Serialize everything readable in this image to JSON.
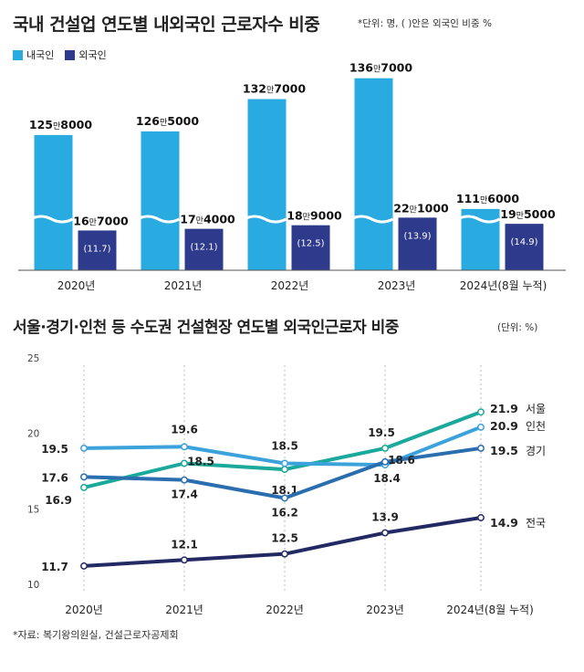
{
  "chart_data": [
    {
      "type": "bar",
      "title": "국내 건설업 연도별 내외국인 근로자수 비중",
      "unit_note": "*단위: 명, ( )안은 외국인 비중 %",
      "categories": [
        "2020년",
        "2021년",
        "2022년",
        "2023년",
        "2024년(8월 누적)"
      ],
      "axis_break": true,
      "series": [
        {
          "name": "내국인",
          "color": "#29aae1",
          "values": [
            1258000,
            1265000,
            1327000,
            1367000,
            1116000
          ],
          "labels": [
            {
              "num": "125",
              "man": "만",
              "rest": "8000"
            },
            {
              "num": "126",
              "man": "만",
              "rest": "5000"
            },
            {
              "num": "132",
              "man": "만",
              "rest": "7000"
            },
            {
              "num": "136",
              "man": "만",
              "rest": "7000"
            },
            {
              "num": "111",
              "man": "만",
              "rest": "6000"
            }
          ]
        },
        {
          "name": "외국인",
          "color": "#2e3a8c",
          "values": [
            167000,
            174000,
            189000,
            221000,
            195000
          ],
          "labels": [
            {
              "num": "16",
              "man": "만",
              "rest": "7000"
            },
            {
              "num": "17",
              "man": "만",
              "rest": "4000"
            },
            {
              "num": "18",
              "man": "만",
              "rest": "9000"
            },
            {
              "num": "22",
              "man": "만",
              "rest": "1000"
            },
            {
              "num": "19",
              "man": "만",
              "rest": "5000"
            }
          ],
          "share_labels": [
            "(11.7)",
            "(12.1)",
            "(12.5)",
            "(13.9)",
            "(14.9)"
          ]
        }
      ]
    },
    {
      "type": "line",
      "title": "서울·경기·인천 등 수도권 건설현장 연도별 외국인근로자 비중",
      "unit_note": "(단위: %)",
      "categories": [
        "2020년",
        "2021년",
        "2022년",
        "2023년",
        "2024년(8월 누적)"
      ],
      "ylim": [
        10,
        25
      ],
      "yticks": [
        "10",
        "15",
        "20",
        "25"
      ],
      "grid": "vertical dashed",
      "series": [
        {
          "name": "서울",
          "color": "#1aa99a",
          "values": [
            16.9,
            18.5,
            18.1,
            19.5,
            21.9
          ],
          "labels": [
            "16.9",
            "18.5",
            "18.1",
            "19.5",
            "21.9"
          ]
        },
        {
          "name": "인천",
          "color": "#3ba2dc",
          "values": [
            19.5,
            19.6,
            18.5,
            18.4,
            20.9
          ],
          "labels": [
            "19.5",
            "19.6",
            "18.5",
            "18.4",
            "20.9"
          ]
        },
        {
          "name": "경기",
          "color": "#2a6eb0",
          "values": [
            17.6,
            17.4,
            16.2,
            18.6,
            19.5
          ],
          "labels": [
            "17.6",
            "17.4",
            "16.2",
            "18.6",
            "19.5"
          ]
        },
        {
          "name": "전국",
          "color": "#232a63",
          "values": [
            11.7,
            12.1,
            12.5,
            13.9,
            14.9
          ],
          "labels": [
            "11.7",
            "12.1",
            "12.5",
            "13.9",
            "14.9"
          ]
        }
      ]
    }
  ],
  "source": "*자료: 복기왕의원실, 건설근로자공제회"
}
